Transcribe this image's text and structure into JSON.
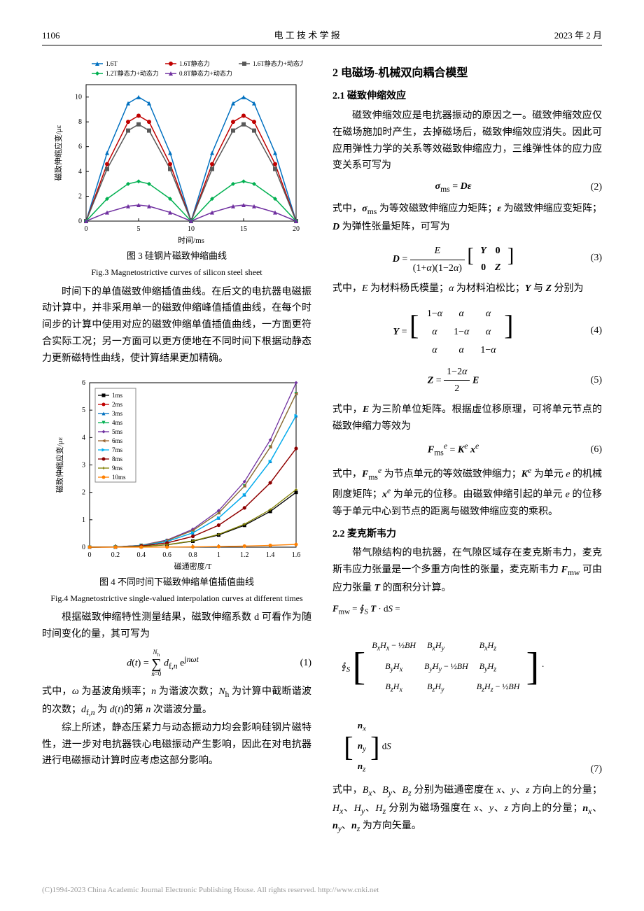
{
  "header": {
    "page_num": "1106",
    "journal": "电 工 技 术 学 报",
    "issue": "2023 年 2 月"
  },
  "fig3": {
    "type": "line",
    "caption_cn": "图 3   硅钢片磁致伸缩曲线",
    "caption_en": "Fig.3   Magnetostrictive curves of silicon steel sheet",
    "xlabel": "时间/ms",
    "ylabel": "磁致伸缩应变/με",
    "xlim": [
      0,
      20
    ],
    "ylim": [
      0,
      11
    ],
    "xtick_step": 5,
    "ytick_step": 2,
    "background_color": "#ffffff",
    "grid_color": "#cccccc",
    "label_fontsize": 11,
    "tick_fontsize": 10,
    "series": [
      {
        "name": "1.6T",
        "color": "#0070c0",
        "marker": "triangle",
        "x": [
          0,
          2,
          4,
          5,
          6,
          8,
          10,
          12,
          14,
          15,
          16,
          18,
          20
        ],
        "y": [
          0,
          5.5,
          9.5,
          10.0,
          9.5,
          5.5,
          0,
          5.5,
          9.5,
          10.0,
          9.5,
          5.5,
          0
        ]
      },
      {
        "name": "1.6T静态力",
        "color": "#c00000",
        "marker": "circle",
        "x": [
          0,
          2,
          4,
          5,
          6,
          8,
          10,
          12,
          14,
          15,
          16,
          18,
          20
        ],
        "y": [
          0,
          4.6,
          8.0,
          8.5,
          8.0,
          4.6,
          0,
          4.6,
          8.0,
          8.5,
          8.0,
          4.6,
          0
        ]
      },
      {
        "name": "1.6T静态力+动态力",
        "color": "#595959",
        "marker": "square",
        "x": [
          0,
          2,
          4,
          5,
          6,
          8,
          10,
          12,
          14,
          15,
          16,
          18,
          20
        ],
        "y": [
          0,
          4.2,
          7.3,
          7.8,
          7.3,
          4.2,
          0,
          4.2,
          7.3,
          7.8,
          7.3,
          4.2,
          0
        ]
      },
      {
        "name": "1.2T静态力+动态力",
        "color": "#00b050",
        "marker": "diamond",
        "x": [
          0,
          2,
          4,
          5,
          6,
          8,
          10,
          12,
          14,
          15,
          16,
          18,
          20
        ],
        "y": [
          0,
          1.8,
          3.0,
          3.2,
          3.0,
          1.8,
          0,
          1.8,
          3.0,
          3.2,
          3.0,
          1.8,
          0
        ]
      },
      {
        "name": "0.8T静态力+动态力",
        "color": "#7030a0",
        "marker": "triangle",
        "x": [
          0,
          2,
          4,
          5,
          6,
          8,
          10,
          12,
          14,
          15,
          16,
          18,
          20
        ],
        "y": [
          0,
          0.7,
          1.2,
          1.3,
          1.2,
          0.7,
          0,
          0.7,
          1.2,
          1.3,
          1.2,
          0.7,
          0
        ]
      }
    ]
  },
  "left_text": {
    "p1": "时间下的单值磁致伸缩插值曲线。在后文的电抗器电磁振动计算中，并非采用单一的磁致伸缩峰值插值曲线，在每个时间步的计算中使用对应的磁致伸缩单值插值曲线，一方面更符合实际工况；另一方面可以更方便地在不同时间下根据动静态力更新磁特性曲线，使计算结果更加精确。"
  },
  "fig4": {
    "type": "line",
    "caption_cn": "图 4   不同时间下磁致伸缩单值插值曲线",
    "caption_en": "Fig.4   Magnetostrictive single-valued interpolation curves at different times",
    "xlabel": "磁通密度/T",
    "ylabel": "磁致伸缩应变/με",
    "xlim": [
      0,
      1.6
    ],
    "ylim": [
      0,
      6
    ],
    "xtick_step": 0.2,
    "ytick_step": 1,
    "background_color": "#ffffff",
    "grid_color": "#dddddd",
    "label_fontsize": 11,
    "tick_fontsize": 10,
    "series": [
      {
        "name": "1ms",
        "color": "#000000",
        "marker": "square",
        "end_y": 2.0
      },
      {
        "name": "2ms",
        "color": "#c00000",
        "marker": "circle",
        "end_y": 3.6
      },
      {
        "name": "3ms",
        "color": "#0070c0",
        "marker": "triangle",
        "end_y": 4.8
      },
      {
        "name": "4ms",
        "color": "#00b050",
        "marker": "triangle-down",
        "end_y": 5.6
      },
      {
        "name": "5ms",
        "color": "#7030a0",
        "marker": "diamond",
        "end_y": 6.0
      },
      {
        "name": "6ms",
        "color": "#996633",
        "marker": "triangle-left",
        "end_y": 5.6
      },
      {
        "name": "7ms",
        "color": "#00b0f0",
        "marker": "triangle-right",
        "end_y": 4.8
      },
      {
        "name": "8ms",
        "color": "#8b0000",
        "marker": "circle",
        "end_y": 3.6
      },
      {
        "name": "9ms",
        "color": "#808000",
        "marker": "star",
        "end_y": 2.1
      },
      {
        "name": "10ms",
        "color": "#ff8000",
        "marker": "circle",
        "end_y": 0.1
      }
    ],
    "x_points": [
      0,
      0.2,
      0.4,
      0.6,
      0.8,
      1.0,
      1.2,
      1.4,
      1.6
    ]
  },
  "left_text2": {
    "p2": "根据磁致伸缩特性测量结果，磁致伸缩系数 d 可看作为随时间变化的量，其可写为",
    "eq1_body": "d(t) = ∑ₙ₌₀^{N_h} d_{f,n} e^{jnωt}",
    "eq1_num": "(1)",
    "p3": "式中，ω 为基波角频率；n 为谐波次数；N_h 为计算中截断谐波的次数；d_{f,n} 为 d(t)的第 n 次谐波分量。",
    "p4": "综上所述，静态压紧力与动态振动力均会影响硅钢片磁特性，进一步对电抗器铁心电磁振动产生影响，因此在对电抗器进行电磁振动计算时应考虑这部分影响。"
  },
  "right": {
    "sec2_title": "2   电磁场-机械双向耦合模型",
    "sec21_title": "2.1   磁致伸缩效应",
    "p1": "磁致伸缩效应是电抗器振动的原因之一。磁致伸缩效应仅在磁场施加时产生，去掉磁场后，磁致伸缩效应消失。因此可应用弹性力学的关系等效磁致伸缩应力，三维弹性体的应力应变关系可写为",
    "eq2_body": "σ_ms = Dε",
    "eq2_num": "(2)",
    "p2": "式中，σ_ms 为等效磁致伸缩应力矩阵；ε 为磁致伸缩应变矩阵；D 为弹性张量矩阵，可写为",
    "eq3_body": "D = E / ((1+α)(1−2α)) [ Y 0 ; 0 Z ]",
    "eq3_num": "(3)",
    "p3": "式中，E 为材料杨氏模量；α 为材料泊松比；Y 与 Z 分别为",
    "eq4_body": "Y = [ 1−α  α  α ;  α  1−α  α ;  α  α  1−α ]",
    "eq4_num": "(4)",
    "eq5_body": "Z = (1−2α)/2 · E",
    "eq5_num": "(5)",
    "p4": "式中，E 为三阶单位矩阵。根据虚位移原理，可将单元节点的磁致伸缩力等效为",
    "eq6_body": "F_ms^e = K^e x^e",
    "eq6_num": "(6)",
    "p5": "式中，F_ms^e 为节点单元的等效磁致伸缩力；K^e 为单元 e 的机械刚度矩阵；x^e 为单元的位移。由磁致伸缩引起的单元 e 的位移等于单元中心到节点的距离与磁致伸缩应变的乘积。",
    "sec22_title": "2.2   麦克斯韦力",
    "p6": "带气隙结构的电抗器，在气隙区域存在麦克斯韦力，麦克斯韦应力张量是一个多重方向性的张量，麦克斯韦力 F_mw 可由应力张量 T 的面积分计算。",
    "eq7_body": "F_mw = ∮_S T · dS = ∮_S [ B_xH_x−½BH  B_xH_y  B_xH_z ;  B_yH_x  B_yH_y−½BH  B_yH_z ;  B_zH_x  B_zH_y  B_zH_z−½BH ] · [ n_x ; n_y ; n_z ] dS",
    "eq7_num": "(7)",
    "p7": "式中，B_x、B_y、B_z 分别为磁通密度在 x、y、z 方向上的分量；H_x、H_y、H_z 分别为磁场强度在 x、y、z 方向上的分量；n_x、n_y、n_z 为方向矢量。"
  },
  "footer_text": "(C)1994-2023 China Academic Journal Electronic Publishing House. All rights reserved.    http://www.cnki.net"
}
